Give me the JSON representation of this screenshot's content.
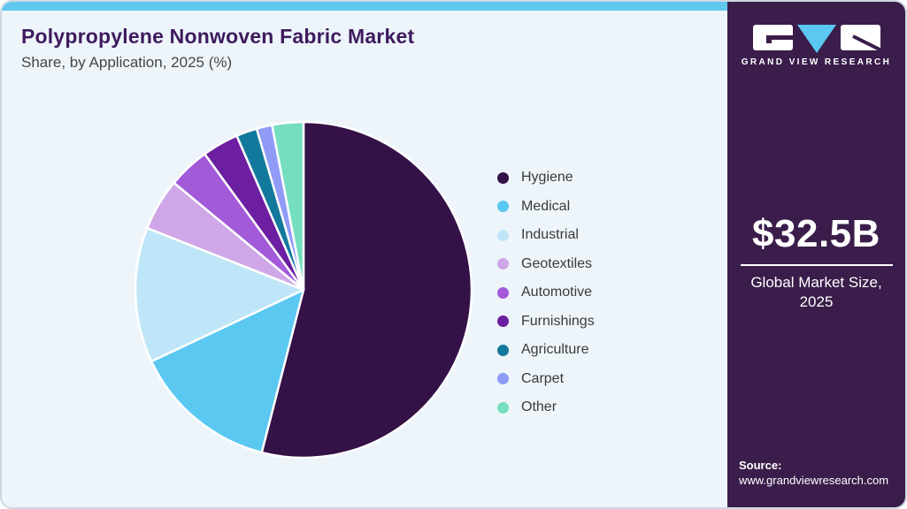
{
  "header": {
    "title": "Polypropylene Nonwoven Fabric Market",
    "subtitle": "Share, by Application, 2025 (%)"
  },
  "chart_data": {
    "type": "pie",
    "title": "Polypropylene Nonwoven Fabric Market Share, by Application, 2025 (%)",
    "unit": "%",
    "start_angle_deg_from_top": 0,
    "direction": "clockwise",
    "legend_position": "right",
    "data_labels_shown": false,
    "segments": [
      {
        "label": "Hygiene",
        "value": 54,
        "color": "#341147"
      },
      {
        "label": "Medical",
        "value": 14,
        "color": "#5bc8f2"
      },
      {
        "label": "Industrial",
        "value": 13,
        "color": "#bfe6f8"
      },
      {
        "label": "Geotextiles",
        "value": 5,
        "color": "#cfa7e8"
      },
      {
        "label": "Automotive",
        "value": 4,
        "color": "#a35ad9"
      },
      {
        "label": "Furnishings",
        "value": 3.5,
        "color": "#6c1fa0"
      },
      {
        "label": "Agriculture",
        "value": 2,
        "color": "#13799c"
      },
      {
        "label": "Carpet",
        "value": 1.5,
        "color": "#8f9bf7"
      },
      {
        "label": "Other",
        "value": 3,
        "color": "#76dec0"
      }
    ]
  },
  "sidebar": {
    "logo": {
      "brand": "GRAND VIEW RESEARCH"
    },
    "market_size_value": "$32.5B",
    "market_size_caption": "Global Market Size, 2025",
    "source_label": "Source:",
    "source_url": "www.grandviewresearch.com"
  },
  "colors": {
    "accent_bar": "#5fc8ef",
    "panel_bg": "#eef5fa",
    "sidebar_bg": "#3a1d4a",
    "title_text": "#3e1b5f",
    "logo_triangle": "#5bc8f2",
    "card_border": "#ccd9e2",
    "slice_separator": "#ffffff"
  }
}
